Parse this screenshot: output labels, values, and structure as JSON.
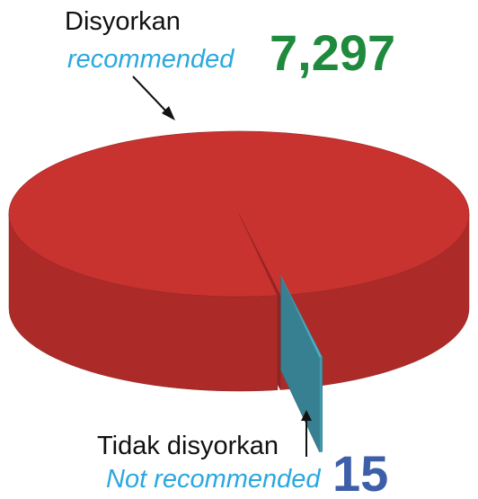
{
  "chart_data": {
    "type": "pie",
    "categories": [
      "Disyorkan",
      "Tidak disyorkan"
    ],
    "categories_en": [
      "recommended",
      "Not recommended"
    ],
    "values": [
      7297,
      15
    ],
    "value_labels": [
      "7,297",
      "15"
    ],
    "colors": [
      "#c8322f",
      "#4db2c9"
    ]
  }
}
